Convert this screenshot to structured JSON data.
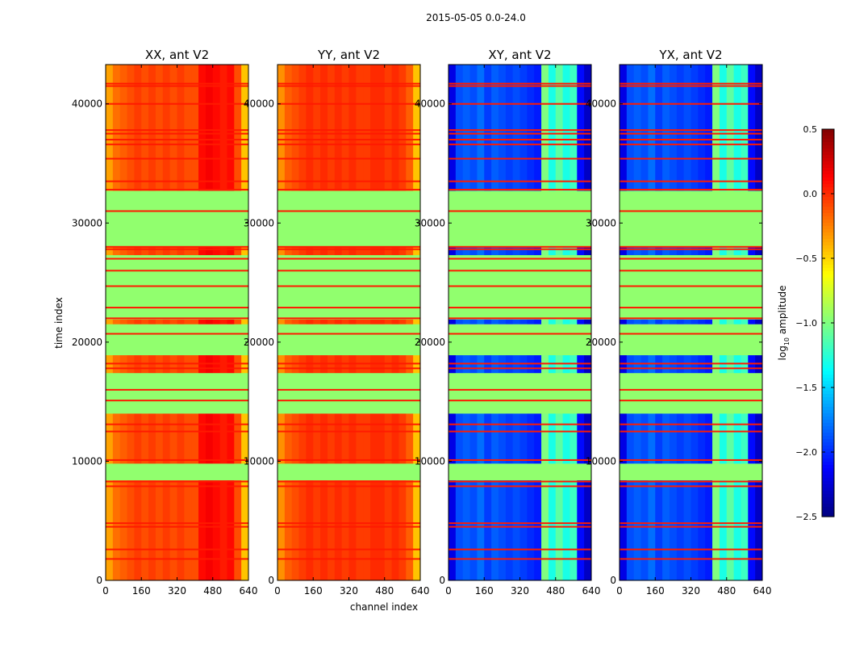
{
  "chart_data": {
    "type": "heatmap",
    "suptitle": "2015-05-05 0.0-24.0",
    "xlabel": "channel index",
    "ylabel": "time index",
    "xlim": [
      0,
      640
    ],
    "ylim": [
      0,
      43300
    ],
    "xticks": [
      0,
      160,
      320,
      480,
      640
    ],
    "yticks": [
      0,
      10000,
      20000,
      30000,
      40000
    ],
    "colormap": "jet",
    "colorbar": {
      "label_main": "log",
      "label_sub": "10",
      "label_rest": " amplitude",
      "range": [
        -2.5,
        0.5
      ],
      "ticks": [
        "0.5",
        "0.0",
        "−0.5",
        "−1.0",
        "−1.5",
        "−2.0",
        "−2.5"
      ],
      "tick_values": [
        0.5,
        0.0,
        -0.5,
        -1.0,
        -1.5,
        -2.0,
        -2.5
      ]
    },
    "channel_bin_width": 32,
    "flagged_value": -0.95,
    "flagged_time_ranges": [
      [
        8400,
        9800
      ],
      [
        14000,
        17400
      ],
      [
        18900,
        21500
      ],
      [
        21900,
        27300
      ],
      [
        28000,
        32700
      ]
    ],
    "hot_line_value": 0.05,
    "hot_line_times": [
      1800,
      2600,
      4500,
      4800,
      7900,
      8300,
      10100,
      12500,
      13100,
      15100,
      16000,
      17800,
      18200,
      20700,
      22000,
      22900,
      24700,
      26000,
      27000,
      27800,
      28000,
      31000,
      32800,
      33500,
      35400,
      36600,
      37000,
      37500,
      37800,
      40000,
      41500,
      41700
    ],
    "panels": [
      {
        "title": "XX, ant V2",
        "column_profile": [
          -0.35,
          -0.2,
          -0.15,
          -0.1,
          -0.05,
          -0.1,
          -0.05,
          -0.1,
          -0.05,
          -0.1,
          -0.05,
          -0.1,
          -0.1,
          0.1,
          0.15,
          0.1,
          0.05,
          0.1,
          -0.1,
          -0.45
        ]
      },
      {
        "title": "YY, ant V2",
        "column_profile": [
          -0.3,
          -0.15,
          -0.1,
          -0.05,
          0,
          -0.05,
          0,
          -0.05,
          0,
          -0.05,
          0,
          -0.05,
          -0.05,
          0,
          0,
          -0.05,
          0,
          -0.05,
          -0.15,
          -0.45
        ]
      },
      {
        "title": "XY, ant V2",
        "column_profile": [
          -2.2,
          -1.9,
          -1.85,
          -1.9,
          -1.8,
          -1.95,
          -1.85,
          -1.9,
          -1.95,
          -1.9,
          -1.95,
          -2.0,
          -2.05,
          -1.0,
          -1.3,
          -1.1,
          -1.3,
          -1.2,
          -2.1,
          -2.3
        ]
      },
      {
        "title": "YX, ant V2",
        "column_profile": [
          -2.2,
          -1.9,
          -1.85,
          -1.9,
          -1.8,
          -1.95,
          -1.85,
          -1.9,
          -1.95,
          -1.9,
          -1.95,
          -2.0,
          -2.05,
          -1.0,
          -1.3,
          -1.1,
          -1.3,
          -1.2,
          -2.1,
          -2.3
        ]
      }
    ]
  }
}
